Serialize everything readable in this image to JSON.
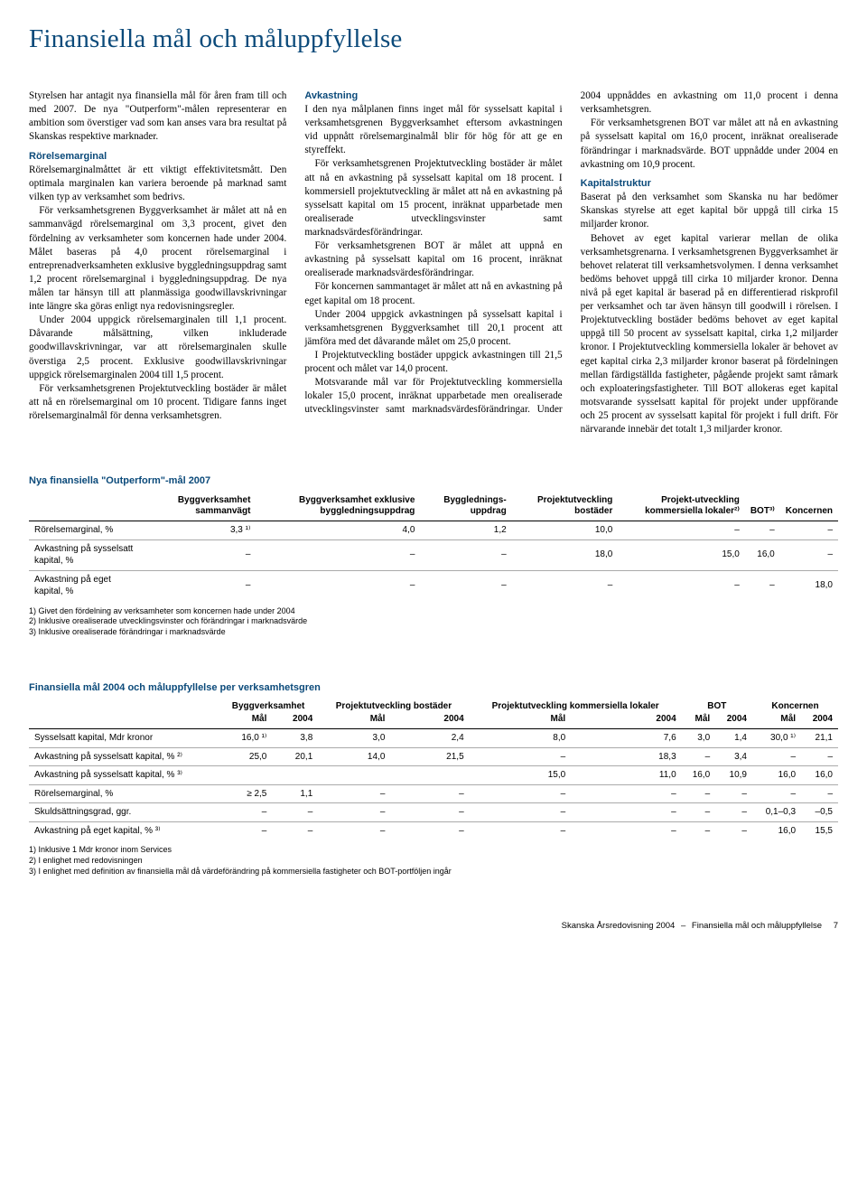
{
  "page": {
    "title": "Finansiella mål och måluppfyllelse",
    "footer_left": "Skanska Årsredovisning 2004",
    "footer_right": "Finansiella mål och måluppfyllelse",
    "page_number": "7"
  },
  "body": {
    "intro": "Styrelsen har antagit nya finansiella mål för åren fram till och med 2007. De nya \"Outperform\"-målen representerar en ambition som överstiger vad som kan anses vara bra resultat på Skanskas respektive marknader.",
    "rorel_h": "Rörelsemarginal",
    "rorel_p1": "Rörelsemarginalmåttet är ett viktigt effektivitetsmått. Den optimala marginalen kan variera beroende på marknad samt vilken typ av verksamhet som bedrivs.",
    "rorel_p2": "För verksamhetsgrenen Byggverksamhet är målet att nå en sammanvägd rörelsemarginal om 3,3 procent, givet den fördelning av verksamheter som koncernen hade under 2004. Målet baseras på 4,0 procent rörelsemarginal i entreprenadverksamheten exklusive byggledningsuppdrag samt 1,2 procent rörelsemarginal i byggledningsuppdrag. De nya målen tar hänsyn till att planmässiga goodwillavskrivningar inte längre ska göras enligt nya redovisningsregler.",
    "rorel_p3": "Under 2004 uppgick rörelsemarginalen till 1,1 procent. Dåvarande målsättning, vilken inkluderade goodwillavskrivningar, var att rörelsemarginalen skulle överstiga 2,5 procent. Exklusive goodwillavskrivningar uppgick rörelsemarginalen 2004 till 1,5 procent.",
    "rorel_p4": "För verksamhetsgrenen Projektutveckling bostäder är målet att nå en rörelsemarginal om 10 procent. Tidigare fanns inget rörelsemarginalmål för denna verksamhetsgren.",
    "avk_h": "Avkastning",
    "avk_p1": "I den nya målplanen finns inget mål för sysselsatt kapital i verksamhetsgrenen Byggverksamhet eftersom avkastningen vid uppnått rörelsemarginalmål blir för hög för att ge en styreffekt.",
    "avk_p2": "För verksamhetsgrenen Projektutveckling bostäder är målet att nå en avkastning på sysselsatt kapital om 18 procent. I kommersiell projektutveckling är målet att nå en avkastning på sysselsatt kapital om 15 procent, inräknat upparbetade men orealiserade utvecklingsvinster samt marknadsvärdesförändringar.",
    "avk_p3": "För verksamhetsgrenen BOT är målet att uppnå en avkastning på sysselsatt kapital om 16 procent, inräknat orealiserade marknadsvärdesförändringar.",
    "avk_p4": "För koncernen sammantaget är målet att nå en avkastning på eget kapital om 18 procent.",
    "avk_p5": "Under 2004 uppgick avkastningen på sysselsatt kapital i verksamhetsgrenen Byggverksamhet till 20,1 procent att jämföra med det dåvarande målet om 25,0 procent.",
    "avk_p6": "I Projektutveckling bostäder uppgick avkastningen till 21,5 procent och målet var 14,0 procent.",
    "avk_p7": "Motsvarande mål var för Projektutveckling kommersiella lokaler 15,0 procent, inräknat upparbetade men orealiserade utvecklingsvinster samt marknadsvärdesförändringar. Under 2004 uppnåddes en avkastning om 11,0 procent i denna verksamhetsgren.",
    "avk_p8": "För verksamhetsgrenen BOT var målet att nå en avkastning på sysselsatt kapital om 16,0 procent, inräknat orealiserade förändringar i marknadsvärde. BOT uppnådde under 2004 en avkastning om 10,9 procent.",
    "kap_h": "Kapitalstruktur",
    "kap_p1": "Baserat på den verksamhet som Skanska nu har bedömer Skanskas styrelse att eget kapital bör uppgå till cirka 15 miljarder kronor.",
    "kap_p2": "Behovet av eget kapital varierar mellan de olika verksamhetsgrenarna. I verksamhetsgrenen Byggverksamhet är behovet relaterat till verksamhetsvolymen. I denna verksamhet bedöms behovet uppgå till cirka 10 miljarder kronor. Denna nivå på eget kapital är baserad på en differentierad riskprofil per verksamhet och tar även hänsyn till goodwill i rörelsen. I Projektutveckling bostäder bedöms behovet av eget kapital uppgå till 50 procent av sysselsatt kapital, cirka 1,2 miljarder kronor. I Projektutveckling kommersiella lokaler är behovet av eget kapital cirka 2,3 miljarder kronor baserat på fördelningen mellan färdigställda fastigheter, pågående projekt samt råmark och exploateringsfastigheter. Till BOT allokeras eget kapital motsvarande sysselsatt kapital för projekt under uppförande och 25 procent av sysselsatt kapital för projekt i full drift. För närvarande innebär det totalt 1,3 miljarder kronor."
  },
  "table1": {
    "title": "Nya finansiella \"Outperform\"-mål 2007",
    "columns": [
      "",
      "Byggverksamhet sammanvägt",
      "Byggverksamhet exklusive byggledningsuppdrag",
      "Bygglednings-uppdrag",
      "Projektutveckling bostäder",
      "Projekt-utveckling kommersiella lokaler²⁾",
      "BOT³⁾",
      "Koncernen"
    ],
    "rows": [
      [
        "Rörelsemarginal, %",
        "3,3 ¹⁾",
        "4,0",
        "1,2",
        "10,0",
        "–",
        "–",
        "–"
      ],
      [
        "Avkastning på sysselsatt kapital, %",
        "–",
        "–",
        "–",
        "18,0",
        "15,0",
        "16,0",
        "–"
      ],
      [
        "Avkastning på eget kapital, %",
        "–",
        "–",
        "–",
        "–",
        "–",
        "–",
        "18,0"
      ]
    ],
    "footnotes": [
      "1) Givet den fördelning av verksamheter som koncernen hade under 2004",
      "2) Inklusive orealiserade utvecklingsvinster och förändringar i marknadsvärde",
      "3) Inklusive orealiserade förändringar i marknadsvärde"
    ]
  },
  "table2": {
    "title": "Finansiella mål 2004 och måluppfyllelse per verksamhetsgren",
    "groups": [
      "",
      "Byggverksamhet",
      "Projektutveckling bostäder",
      "Projektutveckling kommersiella lokaler",
      "BOT",
      "Koncernen"
    ],
    "subcols": [
      "",
      "Mål",
      "2004",
      "Mål",
      "2004",
      "Mål",
      "2004",
      "Mål",
      "2004",
      "Mål",
      "2004"
    ],
    "rows": [
      [
        "Sysselsatt kapital, Mdr kronor",
        "16,0 ¹⁾",
        "3,8",
        "3,0",
        "2,4",
        "8,0",
        "7,6",
        "3,0",
        "1,4",
        "30,0 ¹⁾",
        "21,1"
      ],
      [
        "Avkastning på sysselsatt kapital, % ²⁾",
        "25,0",
        "20,1",
        "14,0",
        "21,5",
        "–",
        "18,3",
        "–",
        "3,4",
        "–",
        "–"
      ],
      [
        "Avkastning på sysselsatt kapital, % ³⁾",
        "",
        "",
        "",
        "",
        "15,0",
        "11,0",
        "16,0",
        "10,9",
        "16,0",
        "16,0"
      ],
      [
        "Rörelsemarginal, %",
        "≥ 2,5",
        "1,1",
        "–",
        "–",
        "–",
        "–",
        "–",
        "–",
        "–",
        "–"
      ],
      [
        "Skuldsättningsgrad, ggr.",
        "–",
        "–",
        "–",
        "–",
        "–",
        "–",
        "–",
        "–",
        "0,1–0,3",
        "–0,5"
      ],
      [
        "Avkastning på eget kapital, % ³⁾",
        "–",
        "–",
        "–",
        "–",
        "–",
        "–",
        "–",
        "–",
        "16,0",
        "15,5"
      ]
    ],
    "footnotes": [
      "1) Inklusive 1 Mdr kronor inom Services",
      "2) I enlighet med redovisningen",
      "3) I enlighet med definition av finansiella mål då värdeförändring på kommersiella fastigheter och BOT-portföljen ingår"
    ]
  }
}
